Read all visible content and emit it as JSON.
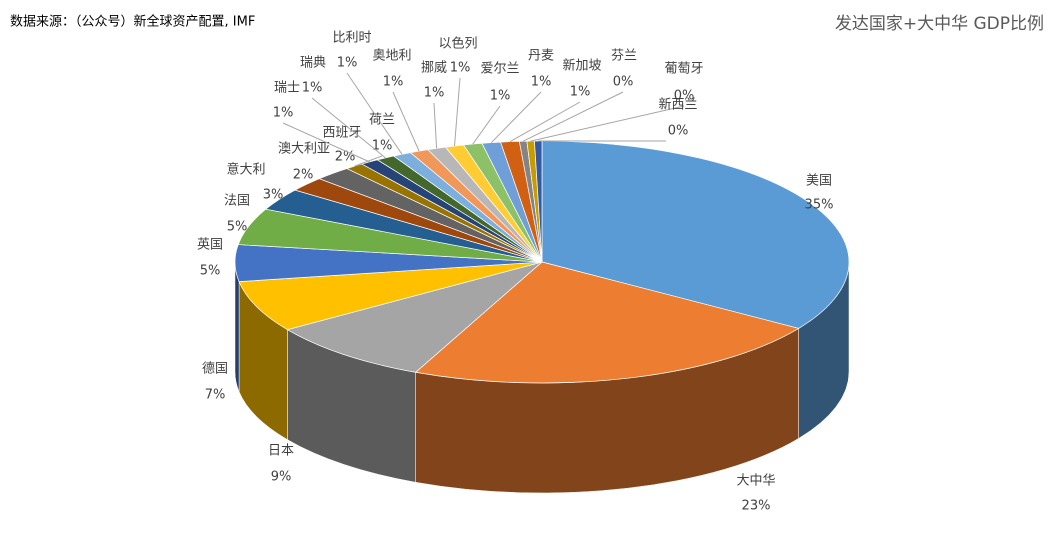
{
  "chart_data": {
    "type": "pie3d",
    "title": "发达国家+大中华 GDP比例",
    "source": "数据来源：（公众号）新全球资产配置, IMF",
    "categories": [
      "美国",
      "大中华",
      "日本",
      "德国",
      "英国",
      "法国",
      "意大利",
      "澳大利亚",
      "西班牙",
      "荷兰",
      "瑞士",
      "瑞典",
      "比利时",
      "奥地利",
      "挪威",
      "以色列",
      "爱尔兰",
      "丹麦",
      "新加坡",
      "芬兰",
      "葡萄牙",
      "新西兰"
    ],
    "values": [
      35,
      23,
      9,
      7,
      5,
      5,
      3,
      2,
      2,
      1,
      1,
      1,
      1,
      1,
      1,
      1,
      1,
      1,
      1,
      0.4,
      0.4,
      0.4
    ],
    "value_labels": [
      "35%",
      "23%",
      "9%",
      "7%",
      "5%",
      "5%",
      "3%",
      "2%",
      "2%",
      "1%",
      "1%",
      "1%",
      "1%",
      "1%",
      "1%",
      "1%",
      "1%",
      "1%",
      "1%",
      "0%",
      "0%",
      "0%"
    ],
    "colors": [
      "#5b9bd5",
      "#ed7d31",
      "#a5a5a5",
      "#ffc000",
      "#4472c4",
      "#70ad47",
      "#255e91",
      "#9e480e",
      "#636363",
      "#997300",
      "#264478",
      "#43682b",
      "#7cafdd",
      "#f1975a",
      "#b7b7b7",
      "#ffcd33",
      "#8cc168",
      "#6f9fd8",
      "#d26012",
      "#848484",
      "#c89b00",
      "#335aa1"
    ]
  }
}
